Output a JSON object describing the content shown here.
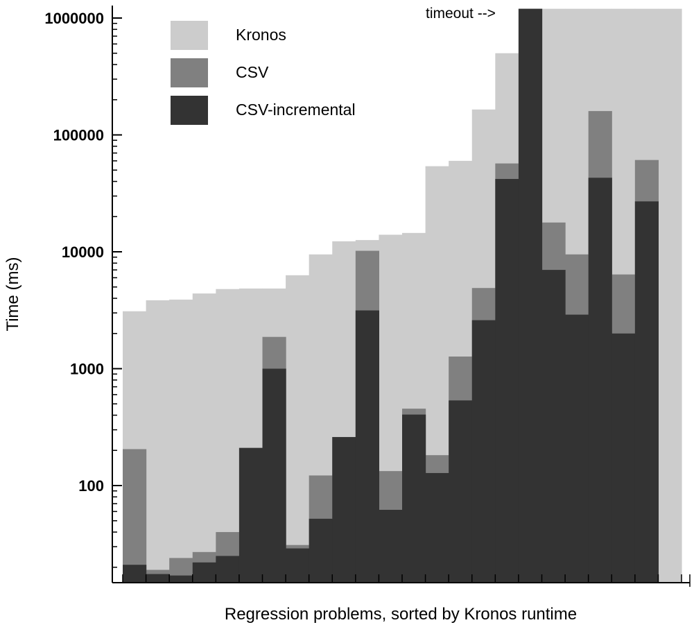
{
  "chart_data": {
    "type": "bar",
    "xlabel": "Regression problems, sorted by Kronos runtime",
    "ylabel": "Time (ms)",
    "yscale": "log",
    "ylim": [
      15,
      1200000
    ],
    "yticks": [
      100,
      1000,
      10000,
      100000,
      1000000
    ],
    "ytick_labels": [
      "100",
      "1000",
      "10000",
      "100000",
      "1000000"
    ],
    "bar_mode": "overlap",
    "legend_position": "top-left",
    "annotation": "timeout -->",
    "series": [
      {
        "name": "Kronos",
        "color": "#cccccc",
        "values": [
          3100,
          3850,
          3900,
          4400,
          4800,
          4850,
          4850,
          6300,
          9500,
          12300,
          12600,
          14000,
          14500,
          54000,
          60000,
          165000,
          500000,
          1200000,
          1200000,
          1200000,
          1200000,
          1200000,
          1200000,
          1200000
        ]
      },
      {
        "name": "CSV",
        "color": "#808080",
        "values": [
          205,
          19,
          24,
          27,
          40,
          210,
          1870,
          31,
          122,
          260,
          10200,
          133,
          455,
          182,
          1270,
          4900,
          57000,
          1200000,
          17800,
          9500,
          160000,
          6400,
          61000,
          0
        ]
      },
      {
        "name": "CSV-incremental",
        "color": "#333333",
        "values": [
          21,
          17.5,
          17,
          22,
          25,
          210,
          1000,
          29,
          52,
          260,
          3150,
          62,
          405,
          128,
          535,
          2600,
          42000,
          1200000,
          7000,
          2900,
          43000,
          2000,
          27000,
          0
        ]
      }
    ]
  }
}
